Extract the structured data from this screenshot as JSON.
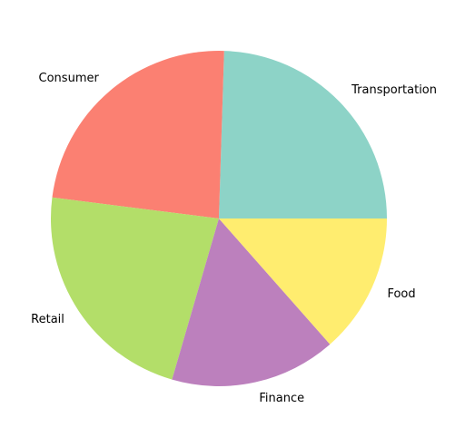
{
  "chart_data": {
    "type": "pie",
    "title": "",
    "categories": [
      "Transportation",
      "Consumer",
      "Retail",
      "Finance",
      "Food"
    ],
    "values": [
      24.5,
      23.5,
      22.5,
      16.0,
      13.5
    ],
    "colors": [
      "#8dd3c7",
      "#fb8072",
      "#b3de69",
      "#bc80bd",
      "#ffed6f"
    ],
    "start_angle_deg": 0,
    "direction": "counterclockwise",
    "legend": "none"
  }
}
